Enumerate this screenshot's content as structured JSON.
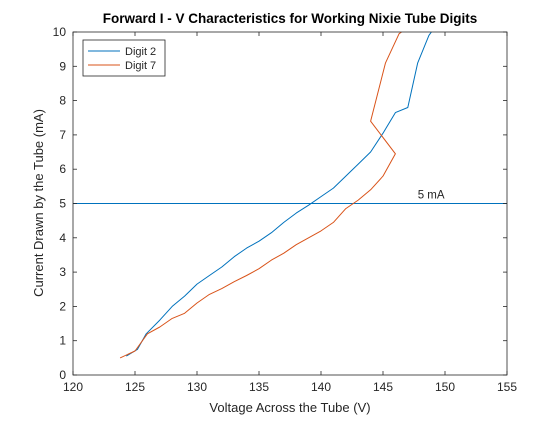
{
  "chart_data": {
    "type": "line",
    "title": "Forward I - V Characteristics for Working Nixie Tube Digits",
    "xlabel": "Voltage Across the Tube (V)",
    "ylabel": "Current Drawn by the Tube (mA)",
    "xlim": [
      120,
      155
    ],
    "ylim": [
      0,
      10
    ],
    "xticks": [
      120,
      125,
      130,
      135,
      140,
      145,
      150,
      155
    ],
    "yticks": [
      0,
      1,
      2,
      3,
      4,
      5,
      6,
      7,
      8,
      9,
      10
    ],
    "grid": false,
    "legend_position": "top-left",
    "series": [
      {
        "name": "Digit 2",
        "color": "#0072BD",
        "points": [
          [
            124.3,
            0.55
          ],
          [
            125.2,
            0.75
          ],
          [
            125.9,
            1.2
          ],
          [
            127.0,
            1.6
          ],
          [
            128.0,
            2.0
          ],
          [
            129.0,
            2.3
          ],
          [
            130.0,
            2.65
          ],
          [
            131.0,
            2.9
          ],
          [
            132.0,
            3.15
          ],
          [
            133.0,
            3.45
          ],
          [
            134.0,
            3.7
          ],
          [
            135.0,
            3.9
          ],
          [
            136.0,
            4.15
          ],
          [
            137.0,
            4.45
          ],
          [
            138.0,
            4.72
          ],
          [
            139.0,
            4.95
          ],
          [
            140.0,
            5.2
          ],
          [
            141.0,
            5.45
          ],
          [
            142.0,
            5.8
          ],
          [
            143.0,
            6.15
          ],
          [
            144.0,
            6.5
          ],
          [
            145.0,
            7.05
          ],
          [
            146.0,
            7.65
          ],
          [
            147.0,
            7.8
          ],
          [
            147.8,
            9.1
          ],
          [
            148.7,
            9.9
          ],
          [
            148.9,
            10.0
          ]
        ]
      },
      {
        "name": "Digit 7",
        "color": "#D95319",
        "points": [
          [
            123.8,
            0.5
          ],
          [
            125.0,
            0.7
          ],
          [
            126.0,
            1.2
          ],
          [
            127.0,
            1.4
          ],
          [
            128.0,
            1.65
          ],
          [
            129.0,
            1.8
          ],
          [
            130.0,
            2.1
          ],
          [
            131.0,
            2.35
          ],
          [
            132.0,
            2.52
          ],
          [
            133.0,
            2.72
          ],
          [
            134.0,
            2.9
          ],
          [
            135.0,
            3.1
          ],
          [
            136.0,
            3.35
          ],
          [
            137.0,
            3.55
          ],
          [
            138.0,
            3.8
          ],
          [
            139.0,
            4.0
          ],
          [
            140.0,
            4.2
          ],
          [
            141.0,
            4.45
          ],
          [
            142.0,
            4.85
          ],
          [
            143.0,
            5.1
          ],
          [
            144.0,
            5.4
          ],
          [
            145.0,
            5.8
          ],
          [
            146.0,
            6.45
          ],
          [
            144.0,
            7.4
          ],
          [
            145.2,
            9.1
          ],
          [
            146.3,
            9.95
          ],
          [
            146.5,
            10.0
          ]
        ]
      }
    ],
    "reference_lines": [
      {
        "axis": "y",
        "value": 5,
        "label": "5 mA",
        "label_x": 147.8,
        "color": "#0072BD"
      }
    ]
  }
}
